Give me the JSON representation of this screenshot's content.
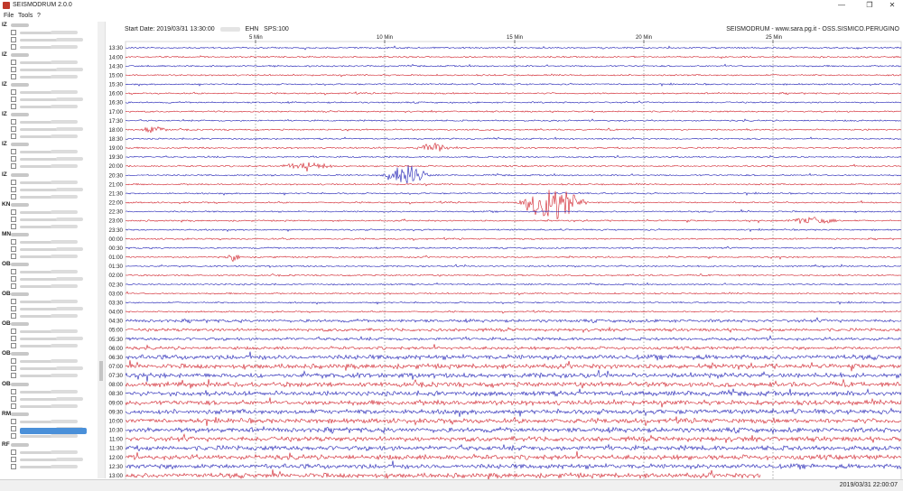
{
  "app": {
    "title": "SEISMODRUM 2.0.0",
    "window_buttons": [
      "—",
      "❐",
      "✕"
    ]
  },
  "menu": [
    "File",
    "Tools",
    "?"
  ],
  "sidebar": {
    "groups": [
      "IZ",
      "IZ",
      "IZ",
      "IZ",
      "IZ",
      "IZ",
      "KN",
      "MN",
      "OB",
      "OB",
      "OB",
      "OB",
      "OB",
      "RM",
      "RF"
    ]
  },
  "header": {
    "start_label": "Start Date: 2019/03/31 13:30:00",
    "channel": "EHN",
    "sps": "SPS:100",
    "credit": "SEISMODRUM - www.sara.pg.it - OSS.SISMICO.PERUGINO"
  },
  "minute_labels": [
    "5 Min",
    "10 Min",
    "15 Min",
    "20 Min",
    "25 Min"
  ],
  "row_times": [
    "13:30",
    "14:00",
    "14:30",
    "15:00",
    "15:30",
    "16:00",
    "16:30",
    "17:00",
    "17:30",
    "18:00",
    "18:30",
    "19:00",
    "19:30",
    "20:00",
    "20:30",
    "21:00",
    "21:30",
    "22:00",
    "22:30",
    "23:00",
    "23:30",
    "00:00",
    "00:30",
    "01:00",
    "01:30",
    "02:00",
    "02:30",
    "03:00",
    "03:30",
    "04:00",
    "04:30",
    "05:00",
    "05:30",
    "06:00",
    "06:30",
    "07:00",
    "07:30",
    "08:00",
    "08:30",
    "09:00",
    "09:30",
    "10:00",
    "10:30",
    "11:00",
    "11:30",
    "12:00",
    "12:30",
    "13:00"
  ],
  "colors": {
    "trace_blue": "#1f1fb4",
    "trace_red": "#d0202a",
    "selected": "#4a90d9"
  },
  "status": {
    "datetime": "2019/03/31 22:00:07"
  }
}
